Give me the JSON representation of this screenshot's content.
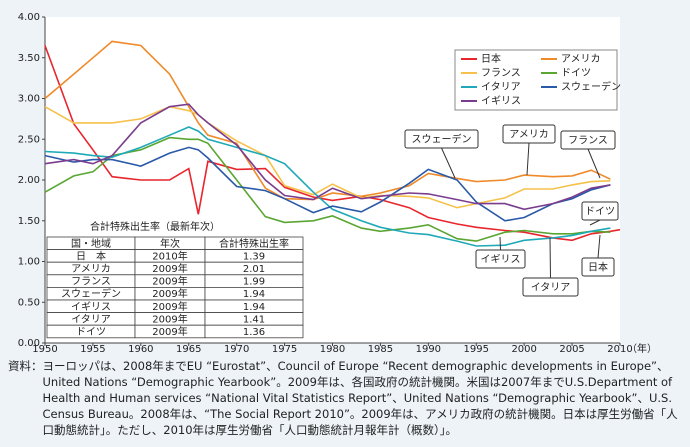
{
  "chart_data": {
    "type": "line",
    "x_label": "（年）",
    "x": [
      1950,
      1953,
      1955,
      1957,
      1960,
      1963,
      1965,
      1966,
      1967,
      1970,
      1973,
      1975,
      1978,
      1980,
      1983,
      1985,
      1988,
      1990,
      1993,
      1995,
      1998,
      2000,
      2003,
      2005,
      2007,
      2009,
      2010
    ],
    "series": [
      {
        "name": "日本",
        "color": "#e8262d",
        "values": [
          3.65,
          2.69,
          2.37,
          2.04,
          2.0,
          2.0,
          2.14,
          1.58,
          2.23,
          2.13,
          2.14,
          1.91,
          1.79,
          1.75,
          1.8,
          1.76,
          1.66,
          1.54,
          1.46,
          1.42,
          1.38,
          1.36,
          1.29,
          1.26,
          1.34,
          1.37,
          1.39
        ]
      },
      {
        "name": "アメリカ",
        "color": "#ef8a2a",
        "values": [
          3.0,
          3.3,
          3.5,
          3.7,
          3.65,
          3.3,
          2.9,
          2.7,
          2.55,
          2.45,
          1.9,
          1.77,
          1.76,
          1.84,
          1.8,
          1.84,
          1.93,
          2.08,
          2.02,
          1.98,
          2.0,
          2.06,
          2.04,
          2.05,
          2.12,
          2.01,
          null
        ]
      },
      {
        "name": "フランス",
        "color": "#f5c14a",
        "values": [
          2.9,
          2.7,
          2.7,
          2.7,
          2.75,
          2.9,
          2.85,
          2.8,
          2.7,
          2.48,
          2.3,
          1.93,
          1.82,
          1.95,
          1.78,
          1.81,
          1.8,
          1.78,
          1.66,
          1.71,
          1.78,
          1.89,
          1.89,
          1.94,
          1.98,
          1.99,
          null
        ]
      },
      {
        "name": "ドイツ",
        "color": "#5aa632",
        "values": [
          1.85,
          2.05,
          2.1,
          2.3,
          2.37,
          2.52,
          2.5,
          2.5,
          2.45,
          2.0,
          1.55,
          1.48,
          1.5,
          1.56,
          1.41,
          1.37,
          1.41,
          1.45,
          1.28,
          1.25,
          1.36,
          1.38,
          1.34,
          1.34,
          1.37,
          1.36,
          null
        ]
      },
      {
        "name": "イタリア",
        "color": "#1fa9b8",
        "values": [
          2.35,
          2.33,
          2.3,
          2.28,
          2.4,
          2.55,
          2.65,
          2.6,
          2.5,
          2.4,
          2.3,
          2.2,
          1.85,
          1.64,
          1.5,
          1.42,
          1.35,
          1.33,
          1.25,
          1.19,
          1.2,
          1.26,
          1.29,
          1.32,
          1.37,
          1.41,
          null
        ]
      },
      {
        "name": "スウェーデン",
        "color": "#2a59a8",
        "values": [
          2.3,
          2.22,
          2.25,
          2.25,
          2.17,
          2.33,
          2.4,
          2.37,
          2.27,
          1.92,
          1.87,
          1.77,
          1.6,
          1.68,
          1.61,
          1.73,
          1.96,
          2.13,
          2.0,
          1.73,
          1.5,
          1.54,
          1.71,
          1.77,
          1.88,
          1.94,
          null
        ]
      },
      {
        "name": "イギリス",
        "color": "#7a3c8e",
        "values": [
          2.2,
          2.25,
          2.2,
          2.3,
          2.7,
          2.9,
          2.93,
          2.8,
          2.7,
          2.43,
          2.0,
          1.81,
          1.76,
          1.9,
          1.77,
          1.8,
          1.84,
          1.83,
          1.76,
          1.71,
          1.71,
          1.64,
          1.71,
          1.79,
          1.9,
          1.94,
          null
        ]
      }
    ],
    "xlim": [
      1950,
      2010
    ],
    "xticks": [
      1950,
      1955,
      1960,
      1965,
      1970,
      1975,
      1980,
      1985,
      1990,
      1995,
      2000,
      2005,
      2010
    ],
    "ylim": [
      0,
      4
    ],
    "yticks": [
      {
        "value": 0,
        "label": "0.00"
      },
      {
        "value": 0.5,
        "label": "0.50"
      },
      {
        "value": 1,
        "label": "1.00"
      },
      {
        "value": 1.5,
        "label": "1.50"
      },
      {
        "value": 2,
        "label": "2.00"
      },
      {
        "value": 2.5,
        "label": "2.50"
      },
      {
        "value": 3,
        "label": "3.00"
      },
      {
        "value": 3.5,
        "label": "3.50"
      },
      {
        "value": 4,
        "label": "4.00"
      }
    ],
    "grid": false,
    "legend": "top-right",
    "annotations": [
      "スウェーデン",
      "アメリカ",
      "フランス",
      "ドイツ",
      "イギリス",
      "イタリア",
      "日本"
    ],
    "table": {
      "title": "合計特殊出生率（最新年次）",
      "header": [
        "国・地域",
        "年次",
        "合計特殊出生率"
      ],
      "rows": [
        [
          "日　本",
          "2010年",
          "1.39"
        ],
        [
          "アメリカ",
          "2009年",
          "2.01"
        ],
        [
          "フランス",
          "2009年",
          "1.99"
        ],
        [
          "スウェーデン",
          "2009年",
          "1.94"
        ],
        [
          "イギリス",
          "2009年",
          "1.94"
        ],
        [
          "イタリア",
          "2009年",
          "1.41"
        ],
        [
          "ドイツ",
          "2009年",
          "1.36"
        ]
      ]
    }
  },
  "source": {
    "label": "資料：",
    "text": "ヨーロッパは、2008年までEU “Eurostat”、Council of Europe “Recent demographic developments in Europe”、United Nations “Demographic Yearbook”。2009年は、各国政府の統計機関。米国は2007年までU.S.Department of Health and Human services “National Vital Statistics Report”、United Nations “Demographic Yearbook”、U.S. Census Bureau。2008年は、“The Social Report 2010”。2009年は、アメリカ政府の統計機関。日本は厚生労働省「人口動態統計」。ただし、2010年は厚生労働省「人口動態統計月報年計（概数）」。"
  }
}
